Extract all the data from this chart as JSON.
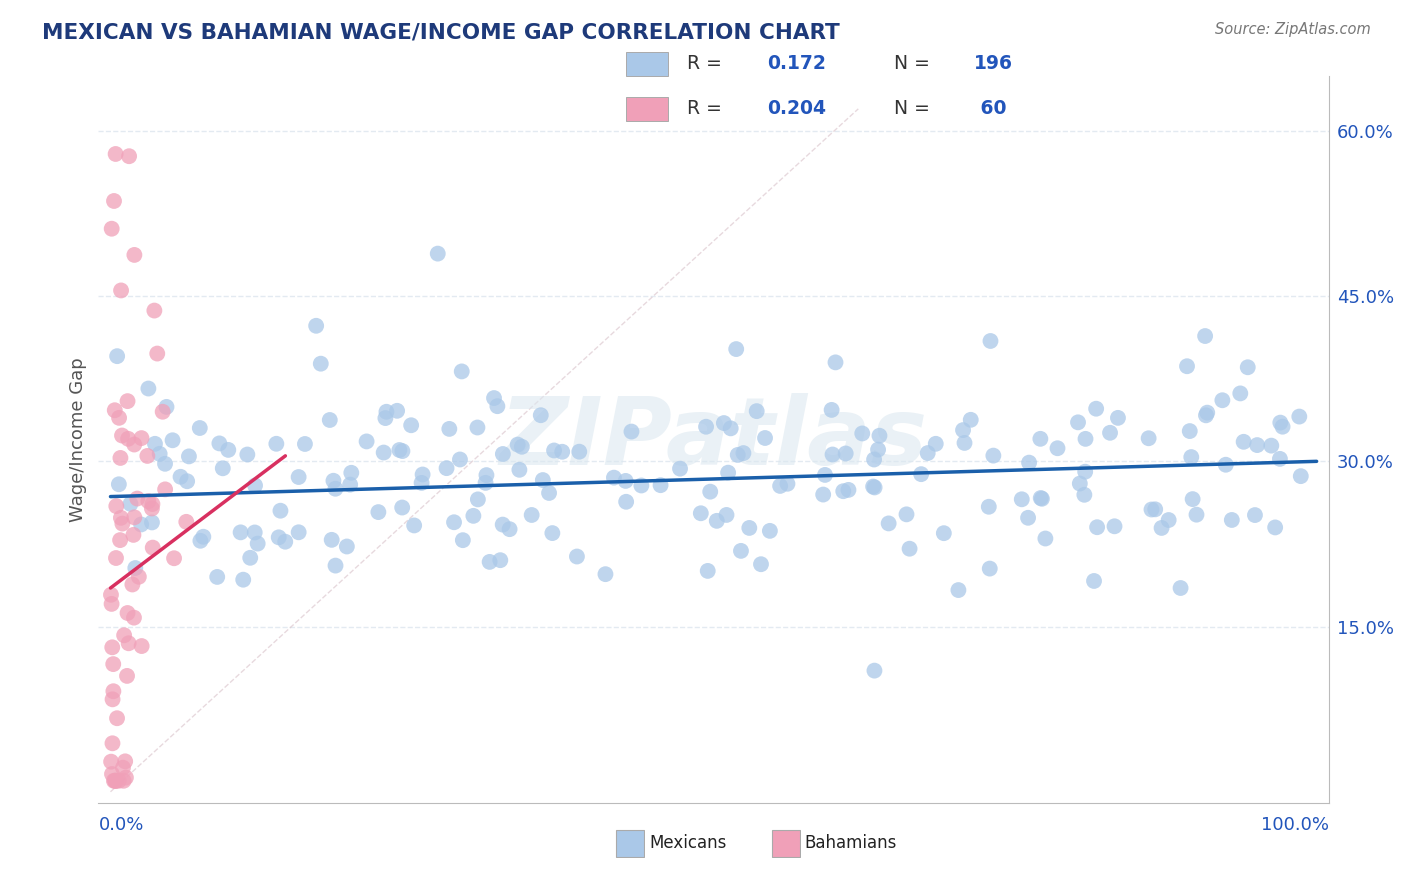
{
  "title": "MEXICAN VS BAHAMIAN WAGE/INCOME GAP CORRELATION CHART",
  "source": "Source: ZipAtlas.com",
  "ylabel": "Wage/Income Gap",
  "xlim": [
    -0.01,
    1.01
  ],
  "ylim": [
    -0.01,
    0.65
  ],
  "ytick_vals": [
    0.15,
    0.3,
    0.45,
    0.6
  ],
  "ytick_labels": [
    "15.0%",
    "30.0%",
    "45.0%",
    "60.0%"
  ],
  "blue_scatter_color": "#aac8e8",
  "pink_scatter_color": "#f0a0b8",
  "blue_line_color": "#1a5faa",
  "pink_line_color": "#d83060",
  "diag_line_color": "#d8c0c8",
  "watermark_color": "#dce8f0",
  "title_color": "#1e3a7a",
  "source_color": "#777777",
  "bg_color": "#ffffff",
  "grid_color": "#e0e8f0",
  "blue_trend_y0": 0.268,
  "blue_trend_y1": 0.3,
  "pink_trend_x0": 0.0,
  "pink_trend_x1": 0.145,
  "pink_trend_y0": 0.185,
  "pink_trend_y1": 0.305,
  "n_blue": 196,
  "n_pink": 60,
  "r_blue": "0.172",
  "r_pink": "0.204",
  "n_blue_str": "196",
  "n_pink_str": "60",
  "blue_seed": 42,
  "pink_seed": 77
}
